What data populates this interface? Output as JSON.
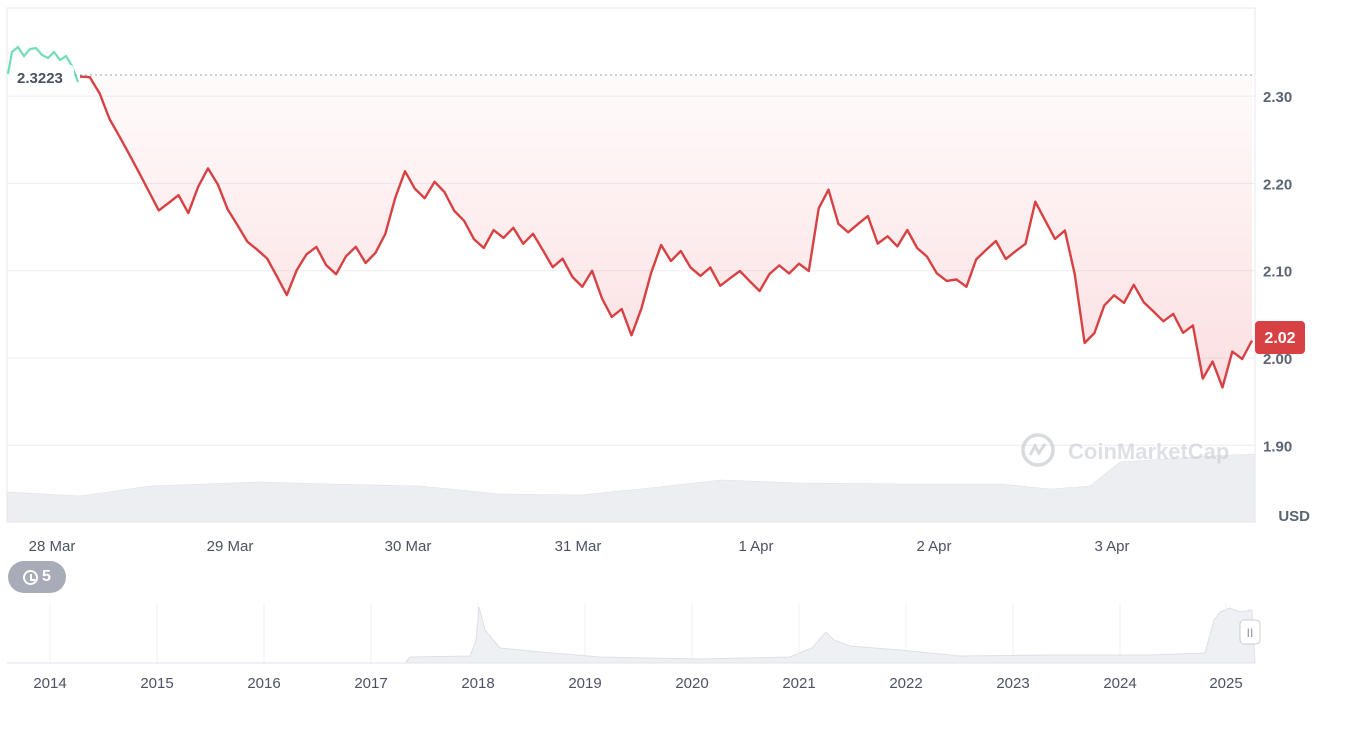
{
  "chart_data": {
    "type": "line",
    "unit": "USD",
    "open_price": "2.3223",
    "current_price": "2.02",
    "y_ticks": [
      "2.30",
      "2.20",
      "2.10",
      "2.00",
      "1.90"
    ],
    "ylim": [
      1.85,
      2.4
    ],
    "x_ticks": [
      "28 Mar",
      "29 Mar",
      "30 Mar",
      "31 Mar",
      "1 Apr",
      "2 Apr",
      "3 Apr"
    ],
    "grid": true,
    "series": [
      {
        "values_by_day": [
          2.3223,
          2.32,
          2.3,
          2.27,
          2.25,
          2.23,
          2.21,
          2.19,
          2.17,
          2.18,
          2.19,
          2.17,
          2.2,
          2.22,
          2.2,
          2.17,
          2.15,
          2.13,
          2.12,
          2.11,
          2.09,
          2.07,
          2.1,
          2.12,
          2.13,
          2.11,
          2.1,
          2.12,
          2.13,
          2.11,
          2.12,
          2.14,
          2.18,
          2.21,
          2.19,
          2.18,
          2.2,
          2.19,
          2.17,
          2.16,
          2.14,
          2.13,
          2.15,
          2.14,
          2.15,
          2.13,
          2.14,
          2.12,
          2.1,
          2.11,
          2.09,
          2.08,
          2.1,
          2.07,
          2.05,
          2.06,
          2.03,
          2.06,
          2.1,
          2.13,
          2.11,
          2.12,
          2.1,
          2.09,
          2.1,
          2.08,
          2.09,
          2.1,
          2.09,
          2.08,
          2.1,
          2.11,
          2.1,
          2.11,
          2.1,
          2.17,
          2.19,
          2.15,
          2.14,
          2.15,
          2.16,
          2.13,
          2.14,
          2.13,
          2.15,
          2.13,
          2.12,
          2.1,
          2.09,
          2.09,
          2.08,
          2.11,
          2.12,
          2.13,
          2.11,
          2.12,
          2.13,
          2.18,
          2.16,
          2.14,
          2.15,
          2.1,
          2.02,
          2.03,
          2.06,
          2.07,
          2.06,
          2.08,
          2.06,
          2.05,
          2.04,
          2.05,
          2.03,
          2.04,
          1.98,
          2.0,
          1.97,
          2.01,
          2.0,
          2.02
        ]
      }
    ],
    "watermark": "CoinMarketCap",
    "history_count": "5",
    "navigator": {
      "x_ticks": [
        "2014",
        "2015",
        "2016",
        "2017",
        "2018",
        "2019",
        "2020",
        "2021",
        "2022",
        "2023",
        "2024",
        "2025"
      ],
      "handle_label": "II"
    }
  }
}
